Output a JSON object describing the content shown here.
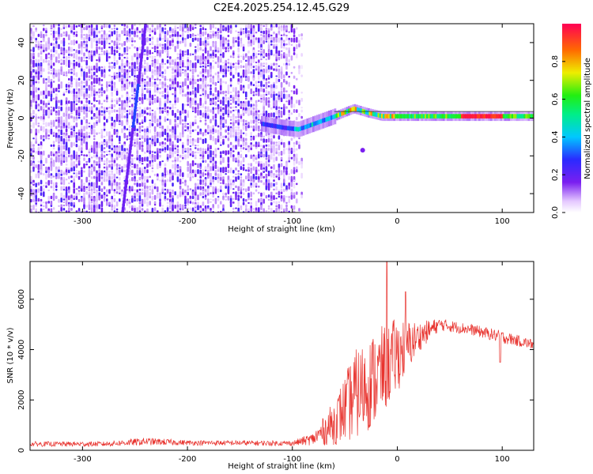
{
  "title": "C2E4.2025.254.12.45.G29",
  "chart_data": [
    {
      "type": "heatmap",
      "name": "spectrogram",
      "xlabel": "Height of straight line (km)",
      "ylabel": "Frequency (Hz)",
      "xlim": [
        -350,
        130
      ],
      "ylim": [
        -50,
        50
      ],
      "xticks": [
        -300,
        -200,
        -100,
        0,
        100
      ],
      "yticks": [
        -40,
        -20,
        0,
        20,
        40
      ],
      "noise_region_x": [
        -350,
        -90
      ],
      "slanted_streak": {
        "x_at_top": -240,
        "x_at_bottom": -262
      },
      "signal_trace": [
        {
          "x": -130,
          "y": -3
        },
        {
          "x": -110,
          "y": -5
        },
        {
          "x": -95,
          "y": -6
        },
        {
          "x": -80,
          "y": -3
        },
        {
          "x": -60,
          "y": 1
        },
        {
          "x": -42,
          "y": 5
        },
        {
          "x": -30,
          "y": 3
        },
        {
          "x": -15,
          "y": 1
        },
        {
          "x": 0,
          "y": 1
        },
        {
          "x": 50,
          "y": 1
        },
        {
          "x": 90,
          "y": 1
        },
        {
          "x": 130,
          "y": 1
        }
      ],
      "colorbar": {
        "label": "Normalized spectral amplitude",
        "range": [
          0,
          1
        ],
        "ticks": [
          0.0,
          0.2,
          0.4,
          0.6,
          0.8
        ]
      }
    },
    {
      "type": "line",
      "name": "snr",
      "xlabel": "Height of straight line (km)",
      "ylabel": "SNR (10 * v/v)",
      "xlim": [
        -350,
        130
      ],
      "ylim": [
        0,
        7500
      ],
      "xticks": [
        -300,
        -200,
        -100,
        0,
        100
      ],
      "yticks": [
        0,
        2000,
        4000,
        6000
      ],
      "color": "#e8332e",
      "envelope": [
        {
          "x": -350,
          "mean": 250,
          "amp": 100
        },
        {
          "x": -280,
          "mean": 250,
          "amp": 100
        },
        {
          "x": -240,
          "mean": 350,
          "amp": 150
        },
        {
          "x": -200,
          "mean": 300,
          "amp": 100
        },
        {
          "x": -100,
          "mean": 280,
          "amp": 100
        },
        {
          "x": -80,
          "mean": 450,
          "amp": 250
        },
        {
          "x": -60,
          "mean": 1100,
          "amp": 900
        },
        {
          "x": -40,
          "mean": 2200,
          "amp": 1800
        },
        {
          "x": -20,
          "mean": 2900,
          "amp": 1900
        },
        {
          "x": 0,
          "mean": 3800,
          "amp": 1500
        },
        {
          "x": 20,
          "mean": 4500,
          "amp": 600
        },
        {
          "x": 40,
          "mean": 5000,
          "amp": 250
        },
        {
          "x": 70,
          "mean": 4800,
          "amp": 220
        },
        {
          "x": 100,
          "mean": 4500,
          "amp": 250
        },
        {
          "x": 130,
          "mean": 4200,
          "amp": 200
        }
      ],
      "spikes": [
        {
          "x": -10,
          "y": 7500
        },
        {
          "x": 8,
          "y": 6300
        },
        {
          "x": 98,
          "y": 3500
        }
      ]
    }
  ]
}
